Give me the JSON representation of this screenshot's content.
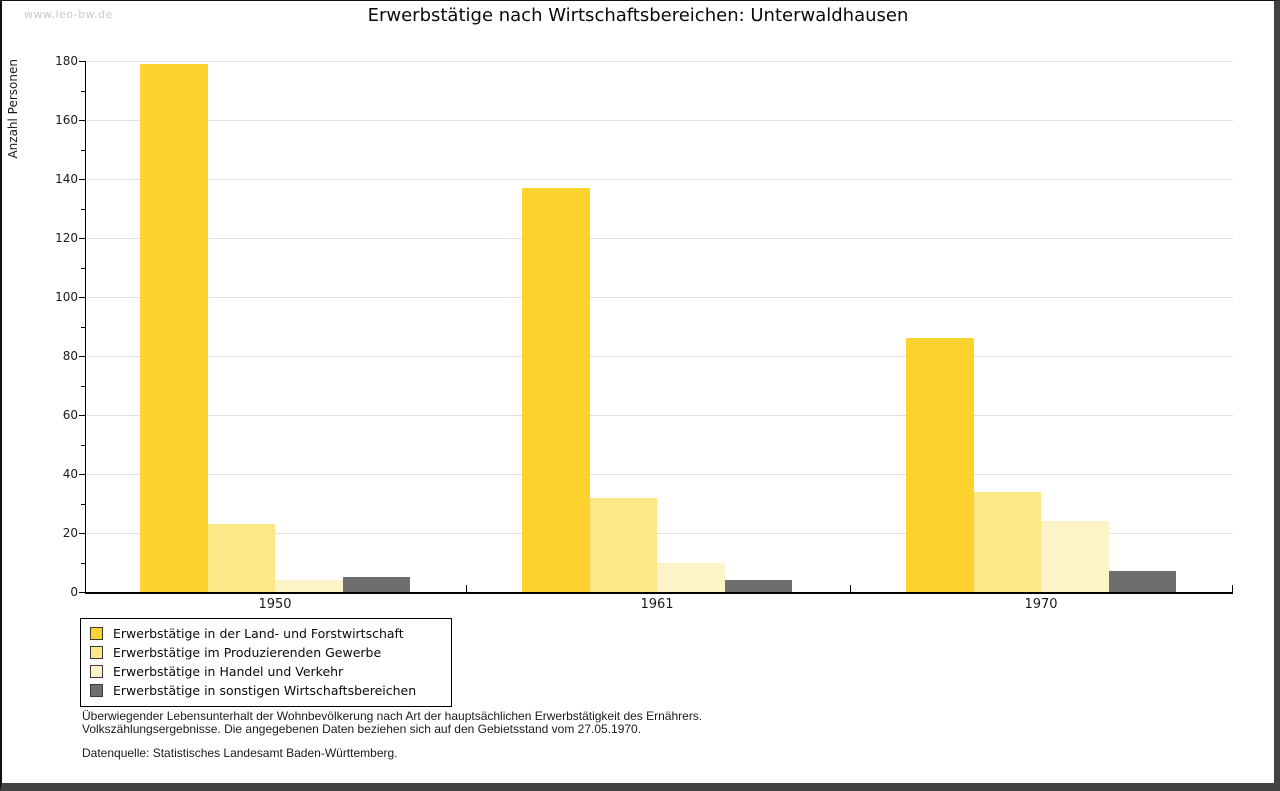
{
  "watermark": "www.leo-bw.de",
  "title": "Erwerbstätige nach Wirtschaftsbereichen: Unterwaldhausen",
  "chart_data": {
    "type": "bar",
    "categories": [
      "1950",
      "1961",
      "1970"
    ],
    "series": [
      {
        "name": "Erwerbstätige in der Land- und Forstwirtschaft",
        "color": "#FCD32F",
        "values": [
          179,
          137,
          86
        ]
      },
      {
        "name": "Erwerbstätige im Produzierenden Gewerbe",
        "color": "#FCE886",
        "values": [
          23,
          32,
          34
        ]
      },
      {
        "name": "Erwerbstätige in Handel und Verkehr",
        "color": "#FCF4C8",
        "values": [
          4,
          10,
          24
        ]
      },
      {
        "name": "Erwerbstätige in sonstigen Wirtschaftsbereichen",
        "color": "#6E6E6E",
        "values": [
          5,
          4,
          7
        ]
      }
    ],
    "title": "Erwerbstätige nach Wirtschaftsbereichen: Unterwaldhausen",
    "xlabel": "",
    "ylabel": "Anzahl Personen",
    "ylim": [
      0,
      180
    ],
    "y_ticks": [
      0,
      20,
      40,
      60,
      80,
      100,
      120,
      140,
      160,
      180
    ],
    "y_minor_step": 10,
    "grid": true,
    "legend_position": "bottom-left"
  },
  "footnotes": {
    "line1": "Überwiegender Lebensunterhalt der Wohnbevölkerung nach Art der hauptsächlichen Erwerbstätigkeit des Ernährers.",
    "line2": "Volkszählungsergebnisse. Die angegebenen Daten beziehen sich auf den Gebietsstand vom 27.05.1970.",
    "source": "Datenquelle: Statistisches Landesamt Baden-Württemberg."
  }
}
